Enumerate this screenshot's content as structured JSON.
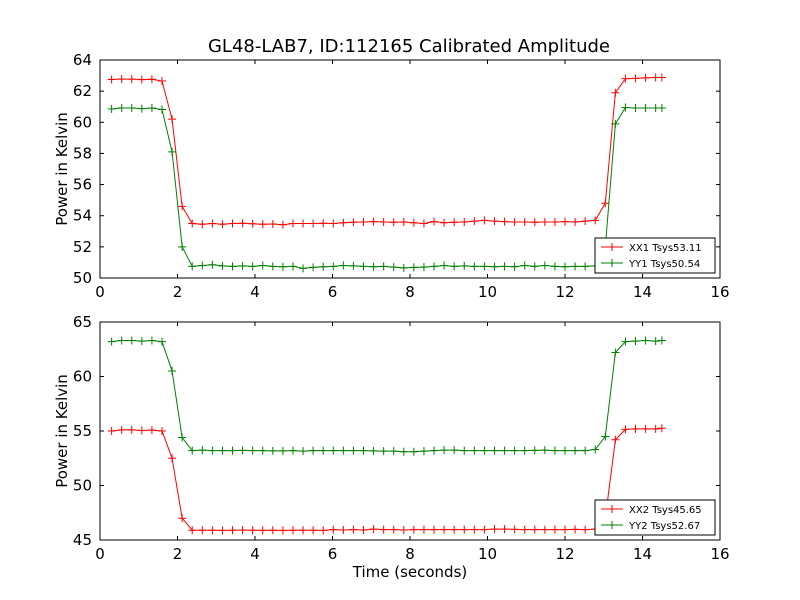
{
  "chart_data": [
    {
      "type": "line",
      "title": "GL48-LAB7, ID:112165 Calibrated Amplitude",
      "xlabel": "",
      "ylabel": "Power in Kelvin",
      "xlim": [
        0,
        16
      ],
      "ylim": [
        50,
        64
      ],
      "xticks": [
        0,
        2,
        4,
        6,
        8,
        10,
        12,
        14,
        16
      ],
      "yticks": [
        50,
        52,
        54,
        56,
        58,
        60,
        62,
        64
      ],
      "grid": false,
      "legend_position": "lower-right",
      "x": [
        0.3,
        0.56,
        0.82,
        1.08,
        1.34,
        1.6,
        1.86,
        2.12,
        2.38,
        2.64,
        2.9,
        3.16,
        3.42,
        3.68,
        3.94,
        4.2,
        4.46,
        4.72,
        4.98,
        5.24,
        5.5,
        5.76,
        6.02,
        6.28,
        6.54,
        6.8,
        7.06,
        7.32,
        7.58,
        7.84,
        8.1,
        8.36,
        8.62,
        8.88,
        9.14,
        9.4,
        9.66,
        9.92,
        10.18,
        10.44,
        10.7,
        10.96,
        11.22,
        11.48,
        11.74,
        12.0,
        12.26,
        12.52,
        12.78,
        13.04,
        13.3,
        13.56,
        13.82,
        14.08,
        14.34,
        14.5
      ],
      "series": [
        {
          "name": "XX1 Tsys53.11",
          "color": "#ff0000",
          "values": [
            62.75,
            62.78,
            62.77,
            62.74,
            62.76,
            62.65,
            60.2,
            54.6,
            53.5,
            53.45,
            53.5,
            53.45,
            53.5,
            53.52,
            53.48,
            53.45,
            53.47,
            53.42,
            53.5,
            53.5,
            53.5,
            53.52,
            53.5,
            53.55,
            53.58,
            53.6,
            53.62,
            53.6,
            53.58,
            53.6,
            53.55,
            53.5,
            53.62,
            53.55,
            53.58,
            53.6,
            53.65,
            53.7,
            53.65,
            53.62,
            53.6,
            53.6,
            53.58,
            53.6,
            53.6,
            53.62,
            53.6,
            53.65,
            53.7,
            54.8,
            61.9,
            62.8,
            62.82,
            62.85,
            62.88,
            62.88
          ]
        },
        {
          "name": "YY1 Tsys50.54",
          "color": "#008000",
          "values": [
            60.85,
            60.92,
            60.92,
            60.88,
            60.92,
            60.82,
            58.1,
            52.0,
            50.75,
            50.8,
            50.85,
            50.78,
            50.75,
            50.78,
            50.75,
            50.8,
            50.75,
            50.72,
            50.75,
            50.62,
            50.68,
            50.72,
            50.75,
            50.8,
            50.78,
            50.75,
            50.72,
            50.75,
            50.7,
            50.65,
            50.68,
            50.7,
            50.75,
            50.8,
            50.75,
            50.78,
            50.75,
            50.75,
            50.72,
            50.75,
            50.72,
            50.8,
            50.75,
            50.8,
            50.75,
            50.72,
            50.75,
            50.75,
            50.78,
            52.0,
            59.9,
            60.95,
            60.92,
            60.92,
            60.92,
            60.92
          ]
        }
      ]
    },
    {
      "type": "line",
      "title": "",
      "xlabel": "Time (seconds)",
      "ylabel": "Power in Kelvin",
      "xlim": [
        0,
        16
      ],
      "ylim": [
        45,
        65
      ],
      "xticks": [
        0,
        2,
        4,
        6,
        8,
        10,
        12,
        14,
        16
      ],
      "yticks": [
        45,
        50,
        55,
        60,
        65
      ],
      "grid": false,
      "legend_position": "lower-right",
      "x": [
        0.3,
        0.56,
        0.82,
        1.08,
        1.34,
        1.6,
        1.86,
        2.12,
        2.38,
        2.64,
        2.9,
        3.16,
        3.42,
        3.68,
        3.94,
        4.2,
        4.46,
        4.72,
        4.98,
        5.24,
        5.5,
        5.76,
        6.02,
        6.28,
        6.54,
        6.8,
        7.06,
        7.32,
        7.58,
        7.84,
        8.1,
        8.36,
        8.62,
        8.88,
        9.14,
        9.4,
        9.66,
        9.92,
        10.18,
        10.44,
        10.7,
        10.96,
        11.22,
        11.48,
        11.74,
        12.0,
        12.26,
        12.52,
        12.78,
        13.04,
        13.3,
        13.56,
        13.82,
        14.08,
        14.34,
        14.5
      ],
      "series": [
        {
          "name": "XX2 Tsys45.65",
          "color": "#ff0000",
          "values": [
            55.0,
            55.1,
            55.1,
            55.05,
            55.08,
            55.0,
            52.5,
            47.0,
            45.9,
            45.9,
            45.9,
            45.88,
            45.9,
            45.92,
            45.9,
            45.88,
            45.9,
            45.88,
            45.9,
            45.9,
            45.9,
            45.88,
            45.95,
            45.92,
            45.95,
            45.92,
            46.0,
            45.95,
            45.95,
            45.92,
            45.95,
            45.95,
            45.95,
            45.95,
            45.95,
            45.95,
            45.95,
            45.95,
            46.0,
            46.0,
            45.98,
            45.95,
            45.95,
            45.95,
            45.95,
            45.95,
            45.98,
            45.95,
            46.0,
            47.0,
            54.2,
            55.15,
            55.2,
            55.2,
            55.2,
            55.25
          ]
        },
        {
          "name": "YY2 Tsys52.67",
          "color": "#008000",
          "values": [
            63.2,
            63.3,
            63.3,
            63.25,
            63.3,
            63.2,
            60.5,
            54.4,
            53.2,
            53.25,
            53.2,
            53.2,
            53.2,
            53.22,
            53.2,
            53.2,
            53.18,
            53.18,
            53.2,
            53.15,
            53.2,
            53.2,
            53.2,
            53.2,
            53.2,
            53.2,
            53.18,
            53.15,
            53.15,
            53.1,
            53.1,
            53.15,
            53.2,
            53.25,
            53.25,
            53.2,
            53.2,
            53.2,
            53.2,
            53.2,
            53.2,
            53.2,
            53.22,
            53.25,
            53.2,
            53.2,
            53.2,
            53.2,
            53.3,
            54.5,
            62.2,
            63.2,
            63.25,
            63.3,
            63.25,
            63.3
          ]
        }
      ]
    }
  ]
}
